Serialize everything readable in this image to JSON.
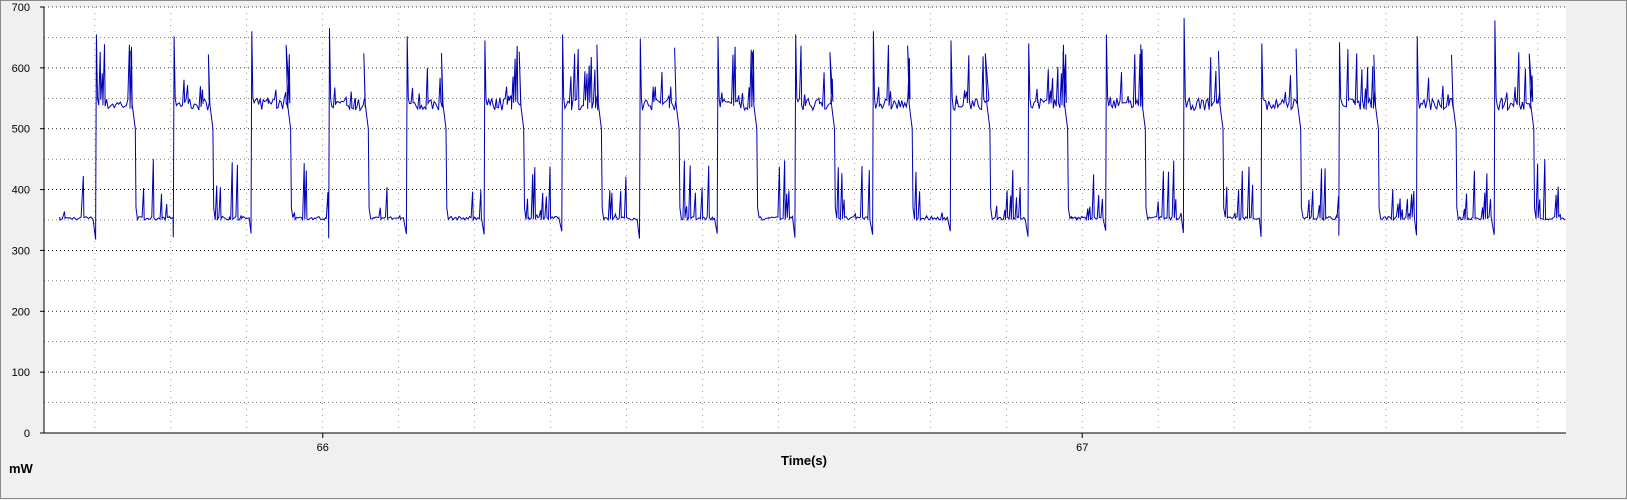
{
  "chart_data": {
    "type": "line",
    "title": "",
    "xlabel": "Time(s)",
    "ylabel": "mW",
    "xlim": [
      65.633,
      67.637
    ],
    "ylim": [
      0,
      700
    ],
    "yticks": [
      0,
      100,
      200,
      300,
      400,
      500,
      600,
      700
    ],
    "ytick_labels": [
      "0",
      "100",
      "200",
      "300",
      "400",
      "500",
      "600",
      "700"
    ],
    "xticks": [
      66,
      67
    ],
    "xtick_labels": [
      "66",
      "67"
    ],
    "grid": true,
    "legend": "none",
    "colors": {
      "line": "#0000b4",
      "plot_bg": "#ffffff",
      "frame_bg": "#f0f0f0",
      "grid": "#000000"
    },
    "series": [
      {
        "period_s": 0.1023,
        "cycle_start_s": 65.702,
        "baseline_mw": 350,
        "spike_mw": [
          410,
          450,
          380
        ],
        "high_onset_peak_mw": 655,
        "high_plateau_mw": 540,
        "high_spikes_mw": [
          570,
          605,
          575,
          640
        ],
        "low_dip_mw": 318,
        "high_peaks_mw": [
          655,
          652,
          660,
          665,
          652,
          645,
          655,
          648,
          652,
          655,
          660,
          645,
          640,
          655,
          682,
          640,
          642,
          652,
          678
        ]
      }
    ]
  }
}
